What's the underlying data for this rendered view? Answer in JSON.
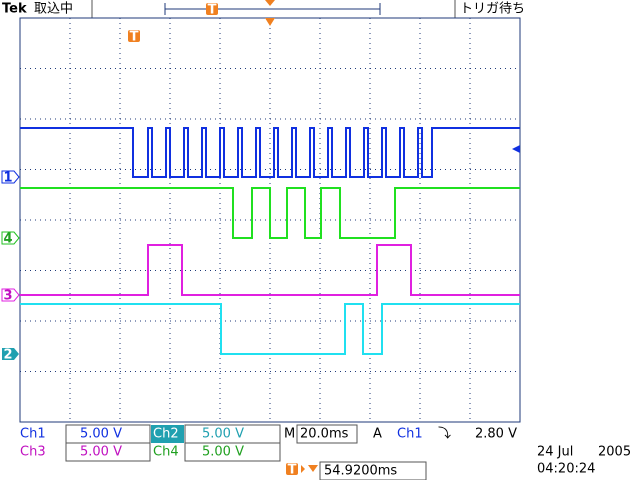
{
  "header": {
    "brand": "Tek",
    "status": "取込中",
    "trigger_state": "トリガ待ち",
    "trigger_marker": "T"
  },
  "markers": {
    "ch1": "1",
    "ch2": "2",
    "ch3": "3",
    "ch4": "4",
    "trigger": "T"
  },
  "settings": {
    "ch1": {
      "name": "Ch1",
      "scale": "5.00 V"
    },
    "ch2": {
      "name": "Ch2",
      "scale": "5.00 V"
    },
    "ch3": {
      "name": "Ch3",
      "scale": "5.00 V"
    },
    "ch4": {
      "name": "Ch4",
      "scale": "5.00 V"
    },
    "timebase": {
      "label": "M",
      "value": "20.0ms"
    },
    "trigger": {
      "mode": "A",
      "source": "Ch1",
      "slope": "⤵",
      "level": "2.80 V"
    },
    "position": {
      "marker": "T",
      "value": "54.9200ms"
    },
    "date": {
      "day_month": "24 Jul",
      "year": "2005"
    },
    "time": "04:20:24"
  }
}
